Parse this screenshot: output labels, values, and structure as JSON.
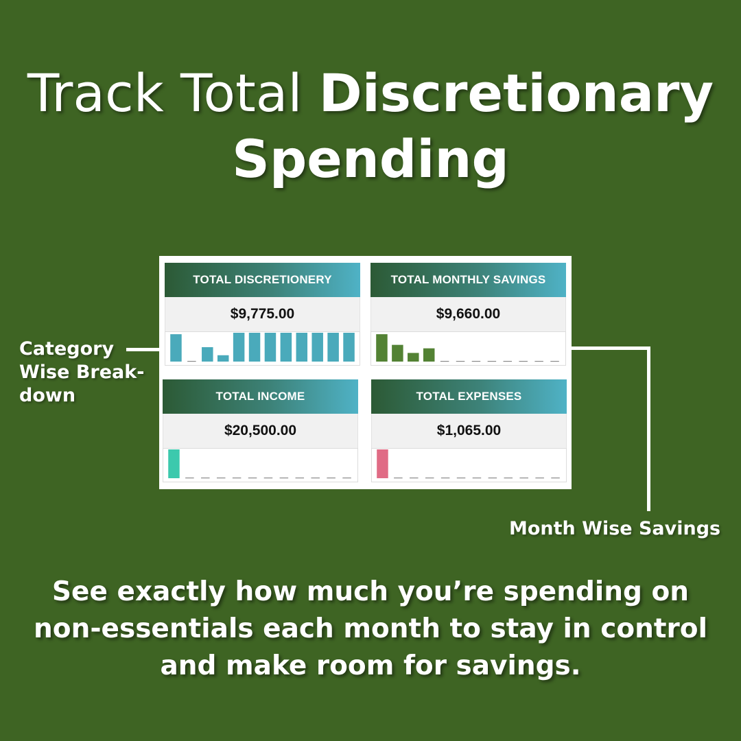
{
  "headline": {
    "light": "Track Total ",
    "bold_line1": "Discretionary",
    "bold_line2": "Spending"
  },
  "cards": [
    {
      "title": "TOTAL DISCRETIONERY",
      "value": "$9,775.00",
      "bar_color": "#4aaabb",
      "bars": [
        0.95,
        0.0,
        0.5,
        0.22,
        1.0,
        1.0,
        1.0,
        1.0,
        1.0,
        1.0,
        1.0,
        1.0
      ]
    },
    {
      "title": "TOTAL MONTHLY SAVINGS",
      "value": "$9,660.00",
      "bar_color": "#538234",
      "bars": [
        0.95,
        0.58,
        0.3,
        0.46,
        0,
        0,
        0,
        0,
        0,
        0,
        0,
        0
      ]
    },
    {
      "title": "TOTAL INCOME",
      "value": "$20,500.00",
      "bar_color": "#3cc9ad",
      "bars": [
        1.0,
        0,
        0,
        0,
        0,
        0,
        0,
        0,
        0,
        0,
        0,
        0
      ]
    },
    {
      "title": "TOTAL EXPENSES",
      "value": "$1,065.00",
      "bar_color": "#e06b85",
      "bars": [
        1.0,
        0,
        0,
        0,
        0,
        0,
        0,
        0,
        0,
        0,
        0,
        0
      ]
    }
  ],
  "annotations": {
    "category_line1": "Category",
    "category_line2": "Wise Break-",
    "category_line3": "down",
    "month": "Month Wise Savings"
  },
  "bottom": {
    "line1": "See exactly how much you’re spending on",
    "line2": "non-essentials each month to stay in control",
    "line3": "and make room for savings."
  }
}
